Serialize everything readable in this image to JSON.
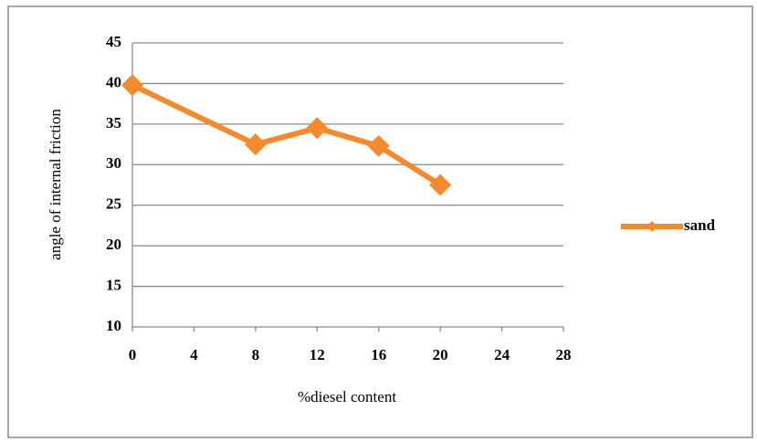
{
  "chart_data": {
    "type": "line",
    "xlabel": "%diesel content",
    "ylabel": "angle of internal friction",
    "x": [
      0,
      8,
      12,
      16,
      20
    ],
    "series": [
      {
        "name": "sand",
        "color": "#f58a2c",
        "values": [
          39.8,
          32.5,
          34.5,
          32.3,
          27.5
        ]
      }
    ],
    "xlim": [
      0,
      28
    ],
    "xticks": [
      0,
      4,
      8,
      12,
      16,
      20,
      24,
      28
    ],
    "ylim": [
      10,
      45
    ],
    "yticks": [
      10,
      15,
      20,
      25,
      30,
      35,
      40,
      45
    ],
    "grid": true,
    "legend": "right"
  }
}
